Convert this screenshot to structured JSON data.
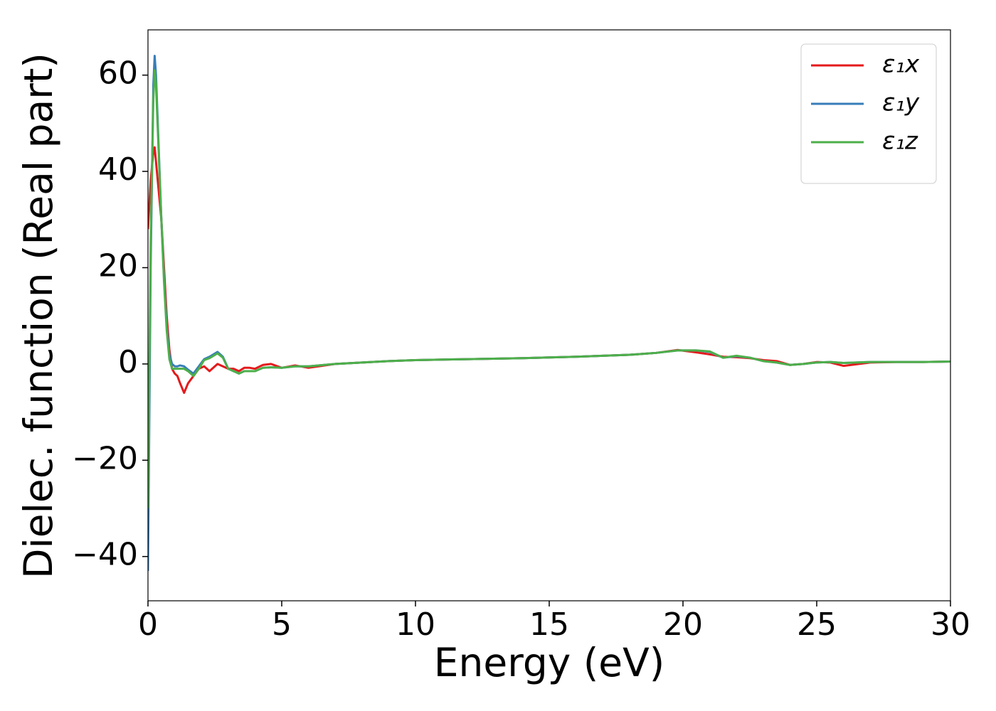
{
  "chart_data": {
    "type": "line",
    "xlabel": "Energy (eV)",
    "ylabel": "Dielec. function (Real part)",
    "x": [
      0,
      0.1,
      0.2,
      0.25,
      0.3,
      0.4,
      0.5,
      0.6,
      0.7,
      0.8,
      0.9,
      1.0,
      1.1,
      1.2,
      1.35,
      1.5,
      1.7,
      1.9,
      2.1,
      2.3,
      2.6,
      2.8,
      3.0,
      3.2,
      3.4,
      3.6,
      3.8,
      4.0,
      4.3,
      4.6,
      5.0,
      5.5,
      6.0,
      7,
      8,
      9,
      10,
      12,
      14,
      16,
      18,
      19,
      19.8,
      20.5,
      21,
      21.5,
      22,
      22.5,
      23,
      23.5,
      24,
      24.5,
      25,
      25.5,
      26,
      27,
      28,
      29,
      30
    ],
    "series": [
      {
        "name": "ε₁x",
        "color": "#e41a1c",
        "values": [
          28,
          38,
          44,
          45,
          42,
          36,
          30,
          20,
          10,
          3,
          -1,
          -2,
          -2.5,
          -4,
          -6,
          -4,
          -2.5,
          -1,
          -0.5,
          -1.5,
          0,
          -0.5,
          -1,
          -1,
          -1.5,
          -0.8,
          -0.8,
          -1,
          -0.2,
          0,
          -0.8,
          -0.3,
          -0.8,
          0,
          0.3,
          0.6,
          0.8,
          1,
          1.2,
          1.5,
          1.9,
          2.3,
          2.9,
          2.4,
          2,
          1.5,
          1.4,
          1.2,
          0.8,
          0.6,
          -0.2,
          0,
          0.4,
          0.3,
          -0.4,
          0.3,
          0.4,
          0.4,
          0.5
        ]
      },
      {
        "name": "ε₁y",
        "color": "#377eb8",
        "values": [
          -43,
          20,
          58,
          64,
          60,
          45,
          30,
          18,
          8,
          2,
          0,
          -0.5,
          -0.5,
          -0.3,
          -0.5,
          -1.2,
          -2,
          -0.5,
          1,
          1.5,
          2.5,
          1.5,
          -1,
          -1.5,
          -2,
          -1.5,
          -1.5,
          -1.5,
          -0.8,
          -0.7,
          -0.8,
          -0.5,
          -0.5,
          0,
          0.3,
          0.6,
          0.8,
          1,
          1.2,
          1.5,
          1.9,
          2.3,
          2.8,
          2.8,
          2.5,
          1.3,
          1.6,
          1.3,
          0.6,
          0.3,
          -0.2,
          0,
          0.3,
          0.4,
          0.2,
          0.4,
          0.4,
          0.4,
          0.5
        ]
      },
      {
        "name": "ε₁z",
        "color": "#4daf4a",
        "values": [
          -30,
          25,
          55,
          61,
          58,
          44,
          30,
          17,
          7,
          1,
          -1,
          -1,
          -1,
          -1,
          -1,
          -1.5,
          -2.5,
          -1,
          0.8,
          1.2,
          2.2,
          1.3,
          -1,
          -1.5,
          -2,
          -1.5,
          -1.5,
          -1.5,
          -0.8,
          -0.7,
          -0.8,
          -0.5,
          -0.5,
          0,
          0.3,
          0.6,
          0.8,
          1,
          1.2,
          1.5,
          1.9,
          2.3,
          2.8,
          2.8,
          2.6,
          1.3,
          1.7,
          1.3,
          0.6,
          0.3,
          -0.2,
          0,
          0.3,
          0.4,
          0.2,
          0.4,
          0.4,
          0.4,
          0.5
        ]
      }
    ],
    "xlim": [
      0,
      30
    ],
    "xticks": [
      0,
      5,
      10,
      15,
      20,
      25,
      30
    ],
    "ylim": [
      -49.2,
      69.4
    ],
    "yticks": [
      -40,
      -20,
      0,
      20,
      40,
      60
    ],
    "grid": false,
    "legend": "upper right"
  }
}
